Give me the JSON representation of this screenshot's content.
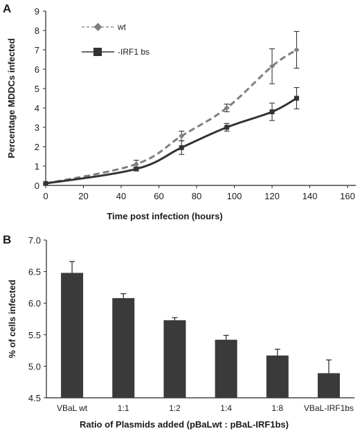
{
  "chart_data": [
    {
      "panel_label": "A",
      "type": "line",
      "xlabel": "Time post infection (hours)",
      "ylabel": "Percentage MDDCs infected",
      "xlim": [
        0,
        160
      ],
      "ylim": [
        0,
        9
      ],
      "xticks": [
        0,
        20,
        40,
        60,
        80,
        100,
        120,
        140,
        160
      ],
      "yticks": [
        0,
        1,
        2,
        3,
        4,
        5,
        6,
        7,
        8,
        9
      ],
      "grid": false,
      "legend_position": "top-left",
      "series": [
        {
          "name": "wt",
          "style": "dashed",
          "marker": "diamond",
          "color": "#7f7f7f",
          "x": [
            0,
            48,
            72,
            96,
            120,
            133
          ],
          "y": [
            0.1,
            1.1,
            2.55,
            4.0,
            6.15,
            7.0
          ],
          "err": [
            0,
            0.2,
            0.25,
            0.2,
            0.9,
            0.95
          ]
        },
        {
          "name": "-IRF1 bs",
          "style": "solid",
          "marker": "square",
          "color": "#333333",
          "x": [
            0,
            48,
            72,
            96,
            120,
            133
          ],
          "y": [
            0.1,
            0.85,
            1.95,
            3.0,
            3.8,
            4.5
          ],
          "err": [
            0,
            0.1,
            0.35,
            0.2,
            0.45,
            0.55
          ]
        }
      ]
    },
    {
      "panel_label": "B",
      "type": "bar",
      "xlabel": "Ratio of Plasmids added (pBaLwt : pBaL-IRF1bs)",
      "ylabel": "% of cells infected",
      "ylim": [
        4.5,
        7.0
      ],
      "yticks": [
        "4.5",
        "5.0",
        "5.5",
        "6.0",
        "6.5",
        "7.0"
      ],
      "grid": false,
      "categories": [
        "VBaL wt",
        "1:1",
        "1:2",
        "1:4",
        "1:8",
        "VBaL-IRF1bs"
      ],
      "values": [
        6.48,
        6.08,
        5.73,
        5.42,
        5.17,
        4.89
      ],
      "err": [
        0.18,
        0.07,
        0.04,
        0.07,
        0.1,
        0.21
      ],
      "bar_color": "#3a3a3a"
    }
  ]
}
